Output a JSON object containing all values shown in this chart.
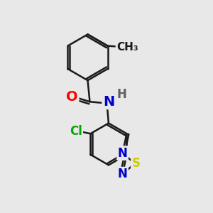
{
  "bg_color": "#e8e8e8",
  "bond_color": "#1a1a1a",
  "bond_width": 1.8,
  "atom_colors": {
    "O": "#ff0000",
    "N": "#0000cc",
    "H": "#606060",
    "S": "#cccc00",
    "Cl": "#00aa00",
    "C": "#1a1a1a"
  },
  "font_size_large": 14,
  "font_size_med": 12,
  "font_size_small": 11
}
